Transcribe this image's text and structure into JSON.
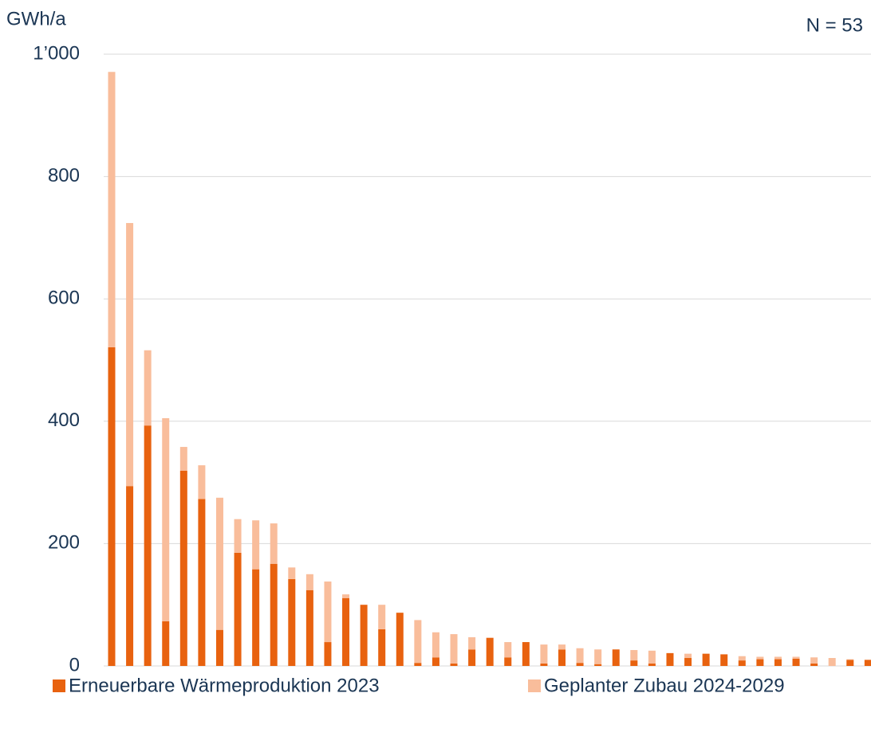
{
  "chart_data": {
    "type": "stacked_bar",
    "y_label": "GWh/a",
    "annotation": "N = 53",
    "ylim": [
      0,
      1000
    ],
    "yticks": [
      0,
      200,
      400,
      600,
      800,
      {
        "value": 1000,
        "label": "1’000"
      }
    ],
    "grid": true,
    "series": [
      {
        "name": "Erneuerbare Wärmeproduktion 2023",
        "color": "#e8620f",
        "values": [
          521,
          294,
          393,
          73,
          319,
          273,
          59,
          185,
          158,
          167,
          142,
          124,
          39,
          111,
          100,
          60,
          87,
          5,
          14,
          4,
          27,
          46,
          14,
          39,
          4,
          27,
          5,
          3,
          27,
          9,
          4,
          21,
          13,
          20,
          19,
          9,
          11,
          11,
          12,
          4,
          0,
          10,
          10
        ]
      },
      {
        "name": "Geplanter Zubau 2024-2029",
        "color": "#f9bd9b",
        "values": [
          450,
          430,
          123,
          332,
          39,
          55,
          216,
          55,
          80,
          66,
          19,
          26,
          99,
          6,
          0,
          40,
          0,
          70,
          41,
          48,
          20,
          0,
          25,
          0,
          31,
          8,
          24,
          24,
          0,
          17,
          21,
          0,
          7,
          0,
          0,
          7,
          4,
          4,
          3,
          10,
          13,
          1,
          0
        ]
      }
    ]
  }
}
